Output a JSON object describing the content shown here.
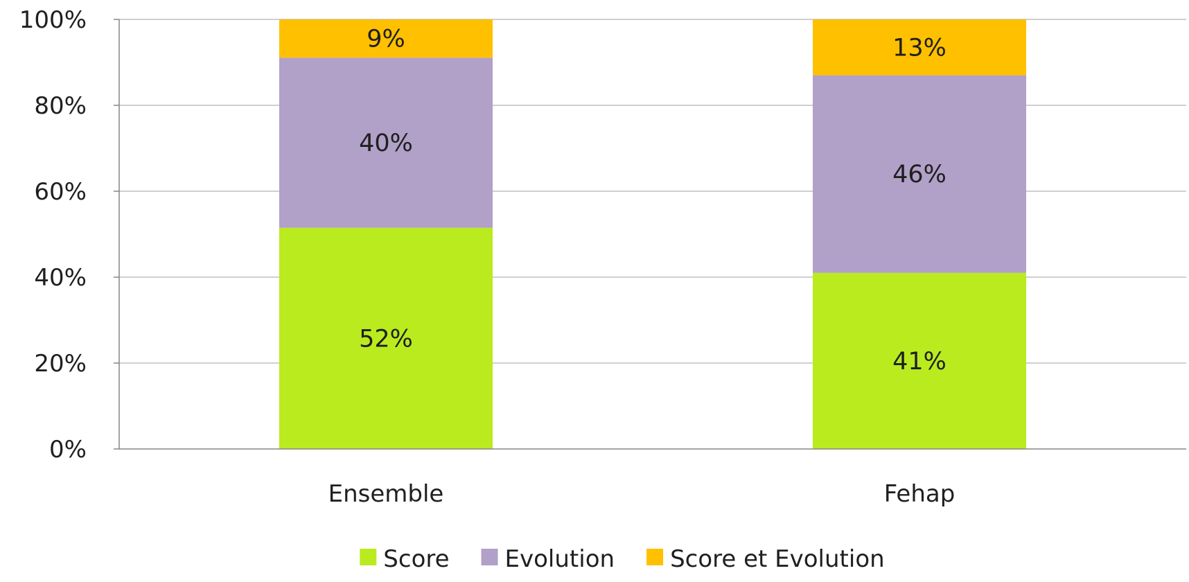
{
  "chart_data": {
    "type": "bar",
    "stacked": true,
    "normalized": true,
    "title": "",
    "xlabel": "",
    "ylabel": "",
    "ylim": [
      0,
      100
    ],
    "y_ticks": [
      0,
      20,
      40,
      60,
      80,
      100
    ],
    "y_tick_format": "{v}%",
    "grid": true,
    "legend_position": "bottom",
    "categories": [
      "Ensemble",
      "Fehap"
    ],
    "series": [
      {
        "name": "Score",
        "color": "#B9EB1F",
        "values": [
          52,
          41
        ],
        "labels": [
          "52%",
          "41%"
        ]
      },
      {
        "name": "Evolution",
        "color": "#B1A0C7",
        "values": [
          40,
          46
        ],
        "labels": [
          "40%",
          "46%"
        ]
      },
      {
        "name": "Score et Evolution",
        "color": "#FFC000",
        "values": [
          9,
          13
        ],
        "labels": [
          "9%",
          "13%"
        ]
      }
    ]
  }
}
